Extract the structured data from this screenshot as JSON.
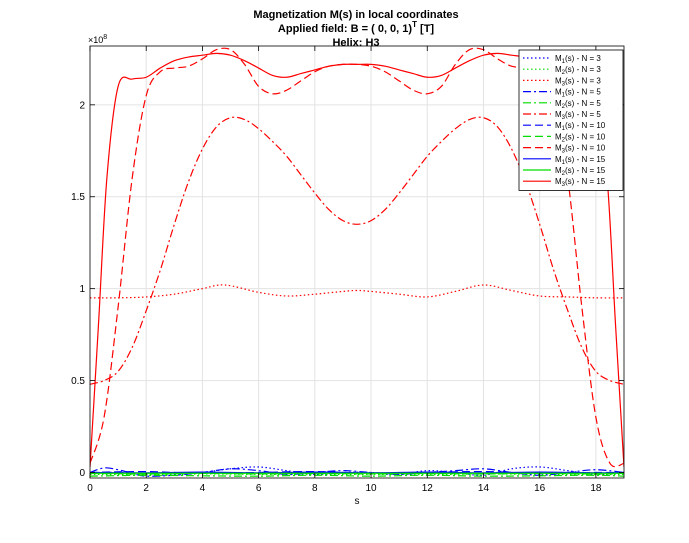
{
  "chart_data": {
    "type": "line",
    "title": [
      "Magnetization M(s) in local coordinates",
      "Applied field: B = ( 0, 0, 1)",
      "Helix: H3"
    ],
    "title_superscript": "T",
    "title_suffix": " [T]",
    "xlabel": "s",
    "ylabel": "",
    "y_exponent_base": "×10",
    "y_exponent": "8",
    "xlim": [
      0,
      19
    ],
    "ylim": [
      -0.03,
      2.32
    ],
    "x_ticks": [
      0,
      2,
      4,
      6,
      8,
      10,
      12,
      14,
      16,
      18
    ],
    "y_ticks": [
      0,
      0.5,
      1,
      1.5,
      2
    ],
    "y_tick_labels": [
      "0",
      "0.5",
      "1",
      "1.5",
      "2"
    ],
    "grid": true,
    "legend_position": "top-right",
    "series": [
      {
        "name": "M1(s)  - N = 3",
        "label_main": "M",
        "label_sub": "1",
        "label_rest": "(s)  - N = 3",
        "color": "#0000ff",
        "style": "dotted",
        "x": [
          0,
          1,
          2,
          3,
          4,
          5,
          6,
          7,
          8,
          9,
          10,
          11,
          12,
          13,
          14,
          15,
          16,
          17,
          18,
          19
        ],
        "values": [
          0.0,
          0.0,
          -0.01,
          -0.015,
          0.0,
          0.02,
          0.03,
          0.01,
          -0.01,
          0.0,
          0.0,
          -0.01,
          0.01,
          0.0,
          -0.015,
          0.02,
          0.03,
          0.01,
          -0.01,
          0.0
        ]
      },
      {
        "name": "M2(s)  - N = 3",
        "label_main": "M",
        "label_sub": "2",
        "label_rest": "(s)  - N = 3",
        "color": "#00dd00",
        "style": "dotted",
        "x": [
          0,
          2,
          4,
          6,
          8,
          10,
          12,
          14,
          16,
          18,
          19
        ],
        "values": [
          -0.01,
          -0.012,
          -0.008,
          -0.01,
          -0.012,
          -0.01,
          -0.012,
          -0.008,
          -0.01,
          -0.012,
          -0.01
        ]
      },
      {
        "name": "M3(s)  - N = 3",
        "label_main": "M",
        "label_sub": "3",
        "label_rest": "(s)  - N = 3",
        "color": "#ff0000",
        "style": "dotted",
        "x": [
          0,
          1,
          2,
          3,
          4,
          4.8,
          6,
          7,
          8,
          9,
          9.5,
          10,
          11,
          12,
          13,
          14,
          15,
          16,
          17,
          18,
          19
        ],
        "values": [
          0.95,
          0.95,
          0.955,
          0.97,
          1.0,
          1.02,
          0.98,
          0.96,
          0.97,
          0.985,
          0.99,
          0.985,
          0.97,
          0.955,
          0.985,
          1.02,
          0.99,
          0.96,
          0.955,
          0.95,
          0.95
        ]
      },
      {
        "name": "M1(s)  - N = 5",
        "label_main": "M",
        "label_sub": "1",
        "label_rest": "(s)  - N = 5",
        "color": "#0000ff",
        "style": "dashdot",
        "x": [
          0,
          0.5,
          1,
          1.5,
          2,
          3,
          4,
          5,
          6,
          7,
          8,
          9,
          10,
          11,
          12,
          13,
          14,
          15,
          16,
          17,
          18,
          19
        ],
        "values": [
          0.0,
          0.025,
          0.015,
          -0.005,
          -0.02,
          -0.015,
          0.0,
          0.02,
          0.01,
          -0.01,
          0.0,
          0.01,
          0.0,
          -0.01,
          0.0,
          0.01,
          0.02,
          0.0,
          -0.015,
          0.0,
          0.015,
          0.0
        ]
      },
      {
        "name": "M2(s)  - N = 5",
        "label_main": "M",
        "label_sub": "2",
        "label_rest": "(s)  - N = 5",
        "color": "#00dd00",
        "style": "dashdot",
        "x": [
          0,
          2,
          4,
          6,
          8,
          10,
          12,
          14,
          16,
          18,
          19
        ],
        "values": [
          -0.02,
          -0.015,
          -0.018,
          -0.02,
          -0.015,
          -0.02,
          -0.015,
          -0.02,
          -0.018,
          -0.015,
          -0.02
        ]
      },
      {
        "name": "M3(s)  - N = 5",
        "label_main": "M",
        "label_sub": "3",
        "label_rest": "(s)  - N = 5",
        "color": "#ff0000",
        "style": "dashdot",
        "x": [
          0,
          0.5,
          1,
          1.5,
          2,
          2.5,
          3,
          3.5,
          4,
          4.5,
          5,
          5.5,
          6,
          6.5,
          7,
          7.5,
          8,
          8.5,
          9,
          9.5,
          10,
          10.5,
          11,
          11.5,
          12,
          12.5,
          13,
          13.5,
          14,
          14.5,
          15,
          15.5,
          16,
          16.5,
          17,
          17.5,
          18,
          18.5,
          19
        ],
        "values": [
          0.48,
          0.5,
          0.55,
          0.68,
          0.88,
          1.1,
          1.35,
          1.58,
          1.76,
          1.88,
          1.93,
          1.92,
          1.87,
          1.8,
          1.72,
          1.62,
          1.52,
          1.43,
          1.37,
          1.35,
          1.37,
          1.43,
          1.52,
          1.62,
          1.72,
          1.8,
          1.87,
          1.92,
          1.93,
          1.88,
          1.76,
          1.58,
          1.35,
          1.1,
          0.88,
          0.68,
          0.55,
          0.5,
          0.48
        ]
      },
      {
        "name": "M1(s)  - N = 10",
        "label_main": "M",
        "label_sub": "1",
        "label_rest": "(s)  - N = 10",
        "color": "#0000ff",
        "style": "dashed",
        "x": [
          0,
          2,
          4,
          6,
          8,
          10,
          12,
          14,
          16,
          18,
          19
        ],
        "values": [
          0.0,
          0.005,
          -0.005,
          0.0,
          0.005,
          -0.005,
          0.0,
          0.005,
          -0.005,
          0.0,
          0.0
        ]
      },
      {
        "name": "M2(s)  - N = 10",
        "label_main": "M",
        "label_sub": "2",
        "label_rest": "(s)  - N = 10",
        "color": "#00dd00",
        "style": "dashed",
        "x": [
          0,
          2,
          4,
          6,
          8,
          10,
          12,
          14,
          16,
          18,
          19
        ],
        "values": [
          -0.005,
          -0.008,
          -0.005,
          -0.008,
          -0.005,
          -0.008,
          -0.005,
          -0.008,
          -0.005,
          -0.008,
          -0.005
        ]
      },
      {
        "name": "M3(s)  - N = 10",
        "label_main": "M",
        "label_sub": "3",
        "label_rest": "(s)  - N = 10",
        "color": "#ff0000",
        "style": "dashed",
        "x": [
          0,
          0.5,
          1,
          1.5,
          2,
          2.5,
          3,
          3.5,
          4,
          4.5,
          5,
          5.5,
          6,
          6.5,
          7,
          7.5,
          8,
          8.5,
          9,
          9.5,
          10,
          10.5,
          11,
          11.5,
          12,
          12.5,
          13,
          13.5,
          14,
          14.5,
          15,
          15.5,
          16,
          16.5,
          17,
          17.5,
          18,
          18.5,
          19
        ],
        "values": [
          0.05,
          0.3,
          0.9,
          1.6,
          2.05,
          2.18,
          2.2,
          2.21,
          2.25,
          2.3,
          2.3,
          2.22,
          2.1,
          2.06,
          2.08,
          2.13,
          2.18,
          2.21,
          2.22,
          2.22,
          2.21,
          2.18,
          2.13,
          2.08,
          2.06,
          2.1,
          2.22,
          2.3,
          2.3,
          2.25,
          2.21,
          2.2,
          2.18,
          2.05,
          1.6,
          0.9,
          0.3,
          0.05,
          0.05
        ]
      },
      {
        "name": "M1(s)  - N = 15",
        "label_main": "M",
        "label_sub": "1",
        "label_rest": "(s)  - N = 15",
        "color": "#0000ff",
        "style": "solid",
        "x": [
          0,
          2,
          4,
          6,
          8,
          10,
          12,
          14,
          16,
          18,
          19
        ],
        "values": [
          0.0,
          -0.002,
          0.002,
          -0.002,
          0.002,
          -0.002,
          0.002,
          -0.002,
          0.002,
          -0.002,
          0.0
        ]
      },
      {
        "name": "M2(s)  - N = 15",
        "label_main": "M",
        "label_sub": "2",
        "label_rest": "(s)  - N = 15",
        "color": "#00dd00",
        "style": "solid",
        "x": [
          0,
          2,
          4,
          6,
          8,
          10,
          12,
          14,
          16,
          18,
          19
        ],
        "values": [
          -0.004,
          -0.004,
          -0.004,
          -0.004,
          -0.004,
          -0.004,
          -0.004,
          -0.004,
          -0.004,
          -0.004,
          -0.004
        ]
      },
      {
        "name": "M3(s)  - N = 15",
        "label_main": "M",
        "label_sub": "3",
        "label_rest": "(s)  - N = 15",
        "color": "#ff0000",
        "style": "solid",
        "x": [
          0,
          0.3,
          0.6,
          1.0,
          1.5,
          2.0,
          2.5,
          3.0,
          3.5,
          4.0,
          4.5,
          5.0,
          5.5,
          6.0,
          6.5,
          7.0,
          7.5,
          8.0,
          8.5,
          9.0,
          9.5,
          10.0,
          10.5,
          11.0,
          11.5,
          12.0,
          12.5,
          13.0,
          13.5,
          14.0,
          14.5,
          15.0,
          15.5,
          16.0,
          16.5,
          17.0,
          17.5,
          18.0,
          18.4,
          18.7,
          19.0
        ],
        "values": [
          0.03,
          0.8,
          1.6,
          2.1,
          2.14,
          2.15,
          2.2,
          2.24,
          2.26,
          2.27,
          2.28,
          2.27,
          2.24,
          2.2,
          2.16,
          2.15,
          2.17,
          2.19,
          2.21,
          2.22,
          2.22,
          2.22,
          2.21,
          2.19,
          2.17,
          2.15,
          2.16,
          2.2,
          2.24,
          2.27,
          2.28,
          2.27,
          2.26,
          2.24,
          2.2,
          2.15,
          2.14,
          2.1,
          1.6,
          0.8,
          0.03
        ]
      }
    ]
  }
}
